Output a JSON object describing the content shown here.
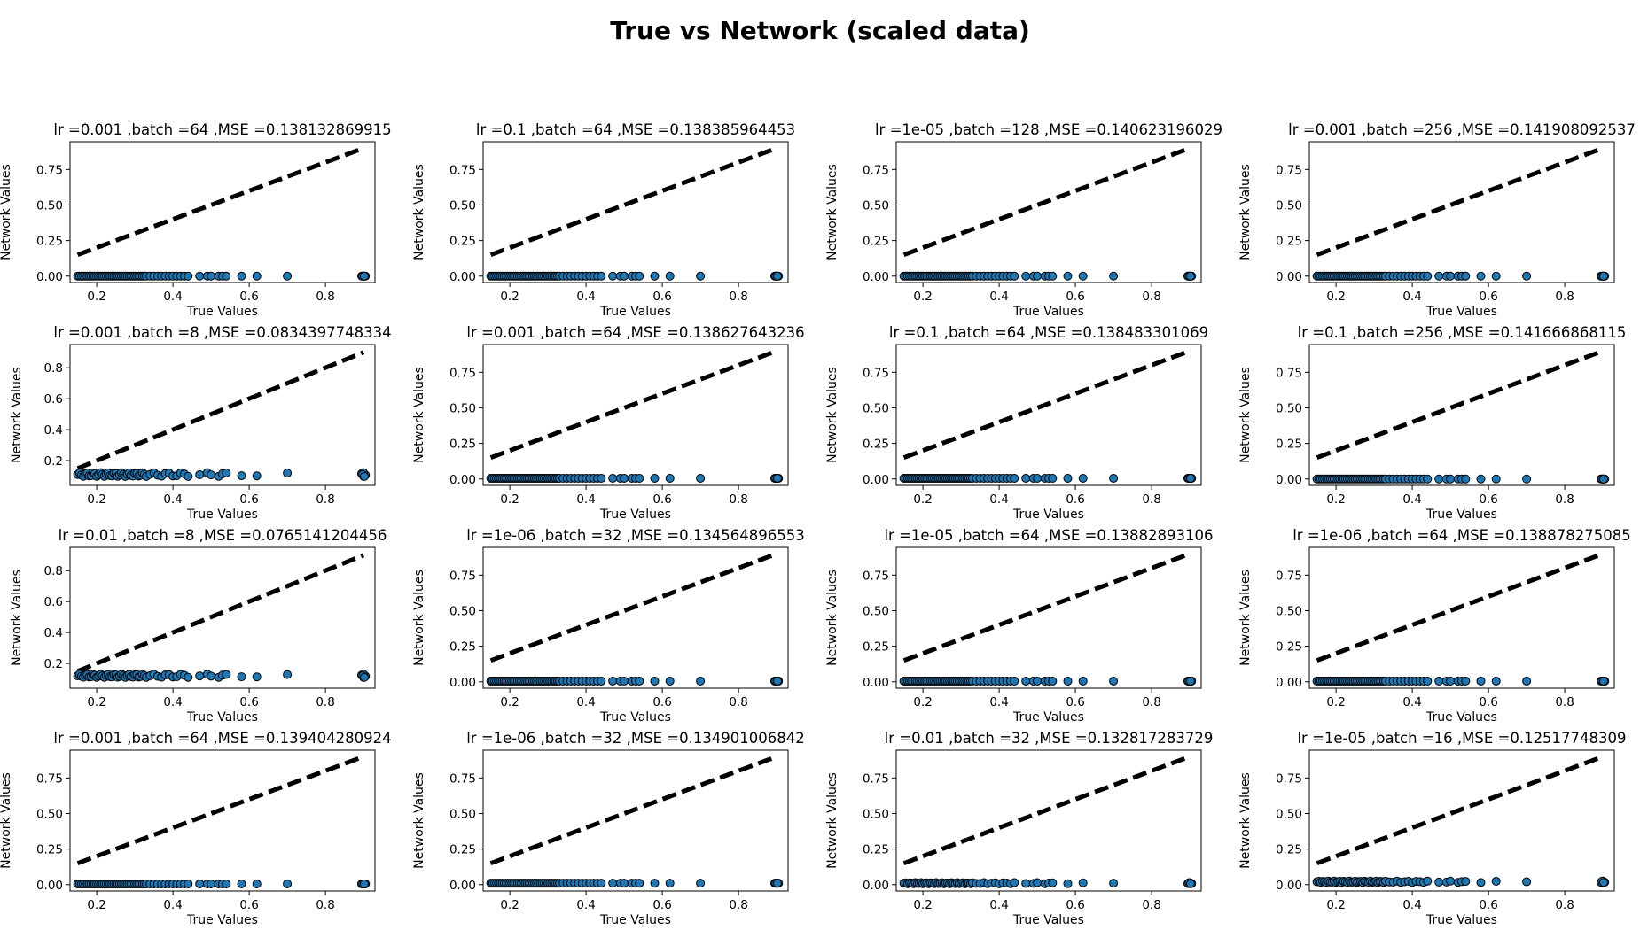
{
  "figure": {
    "suptitle": "True vs Network (scaled data)"
  },
  "chart_data": [
    {
      "type": "scatter",
      "title": "lr =0.001 ,batch =64 ,MSE =0.138132869915",
      "xlabel": "True Values",
      "ylabel": "Network Values",
      "xlim": [
        0.13,
        0.93
      ],
      "ylim": [
        -0.045,
        0.945
      ],
      "xticks": [
        0.2,
        0.4,
        0.6,
        0.8
      ],
      "xtick_labels": [
        "0.2",
        "0.4",
        "0.6",
        "0.8"
      ],
      "yticks": [
        0,
        0.25,
        0.5,
        0.75
      ],
      "ytick_labels": [
        "0.00",
        "0.25",
        "0.50",
        "0.75"
      ],
      "reference_line": {
        "x": [
          0.15,
          0.9
        ],
        "y": [
          0.15,
          0.9
        ]
      },
      "points": {
        "mode": "flat",
        "level": 0.0,
        "spread": 0.0
      }
    },
    {
      "type": "scatter",
      "title": "lr =0.1 ,batch =64 ,MSE =0.138385964453",
      "xlabel": "True Values",
      "ylabel": "Network Values",
      "xlim": [
        0.13,
        0.93
      ],
      "ylim": [
        -0.045,
        0.945
      ],
      "xticks": [
        0.2,
        0.4,
        0.6,
        0.8
      ],
      "xtick_labels": [
        "0.2",
        "0.4",
        "0.6",
        "0.8"
      ],
      "yticks": [
        0,
        0.25,
        0.5,
        0.75
      ],
      "ytick_labels": [
        "0.00",
        "0.25",
        "0.50",
        "0.75"
      ],
      "reference_line": {
        "x": [
          0.15,
          0.9
        ],
        "y": [
          0.15,
          0.9
        ]
      },
      "points": {
        "mode": "flat",
        "level": 0.0,
        "spread": 0.0
      }
    },
    {
      "type": "scatter",
      "title": "lr =1e-05 ,batch =128 ,MSE =0.140623196029",
      "xlabel": "True Values",
      "ylabel": "Network Values",
      "xlim": [
        0.13,
        0.93
      ],
      "ylim": [
        -0.045,
        0.945
      ],
      "xticks": [
        0.2,
        0.4,
        0.6,
        0.8
      ],
      "xtick_labels": [
        "0.2",
        "0.4",
        "0.6",
        "0.8"
      ],
      "yticks": [
        0,
        0.25,
        0.5,
        0.75
      ],
      "ytick_labels": [
        "0.00",
        "0.25",
        "0.50",
        "0.75"
      ],
      "reference_line": {
        "x": [
          0.15,
          0.9
        ],
        "y": [
          0.15,
          0.9
        ]
      },
      "points": {
        "mode": "flat",
        "level": 0.0,
        "spread": 0.0
      }
    },
    {
      "type": "scatter",
      "title": "lr =0.001 ,batch =256 ,MSE =0.141908092537",
      "xlabel": "True Values",
      "ylabel": "Network Values",
      "xlim": [
        0.13,
        0.93
      ],
      "ylim": [
        -0.045,
        0.945
      ],
      "xticks": [
        0.2,
        0.4,
        0.6,
        0.8
      ],
      "xtick_labels": [
        "0.2",
        "0.4",
        "0.6",
        "0.8"
      ],
      "yticks": [
        0,
        0.25,
        0.5,
        0.75
      ],
      "ytick_labels": [
        "0.00",
        "0.25",
        "0.50",
        "0.75"
      ],
      "reference_line": {
        "x": [
          0.15,
          0.9
        ],
        "y": [
          0.15,
          0.9
        ]
      },
      "points": {
        "mode": "flat",
        "level": 0.0,
        "spread": 0.0
      }
    },
    {
      "type": "scatter",
      "title": "lr =0.001 ,batch =8 ,MSE =0.0834397748334",
      "xlabel": "True Values",
      "ylabel": "Network Values",
      "xlim": [
        0.13,
        0.93
      ],
      "ylim": [
        0.04,
        0.95
      ],
      "xticks": [
        0.2,
        0.4,
        0.6,
        0.8
      ],
      "xtick_labels": [
        "0.2",
        "0.4",
        "0.6",
        "0.8"
      ],
      "yticks": [
        0.2,
        0.4,
        0.6,
        0.8
      ],
      "ytick_labels": [
        "0.2",
        "0.4",
        "0.6",
        "0.8"
      ],
      "reference_line": {
        "x": [
          0.15,
          0.9
        ],
        "y": [
          0.15,
          0.9
        ]
      },
      "points": {
        "mode": "wave",
        "level": 0.11,
        "spread": 0.012
      }
    },
    {
      "type": "scatter",
      "title": "lr =0.001 ,batch =64 ,MSE =0.138627643236",
      "xlabel": "True Values",
      "ylabel": "Network Values",
      "xlim": [
        0.13,
        0.93
      ],
      "ylim": [
        -0.045,
        0.945
      ],
      "xticks": [
        0.2,
        0.4,
        0.6,
        0.8
      ],
      "xtick_labels": [
        "0.2",
        "0.4",
        "0.6",
        "0.8"
      ],
      "yticks": [
        0,
        0.25,
        0.5,
        0.75
      ],
      "ytick_labels": [
        "0.00",
        "0.25",
        "0.50",
        "0.75"
      ],
      "reference_line": {
        "x": [
          0.15,
          0.9
        ],
        "y": [
          0.15,
          0.9
        ]
      },
      "points": {
        "mode": "flat",
        "level": 0.005,
        "spread": 0.0
      }
    },
    {
      "type": "scatter",
      "title": "lr =0.1 ,batch =64 ,MSE =0.138483301069",
      "xlabel": "True Values",
      "ylabel": "Network Values",
      "xlim": [
        0.13,
        0.93
      ],
      "ylim": [
        -0.045,
        0.945
      ],
      "xticks": [
        0.2,
        0.4,
        0.6,
        0.8
      ],
      "xtick_labels": [
        "0.2",
        "0.4",
        "0.6",
        "0.8"
      ],
      "yticks": [
        0,
        0.25,
        0.5,
        0.75
      ],
      "ytick_labels": [
        "0.00",
        "0.25",
        "0.50",
        "0.75"
      ],
      "reference_line": {
        "x": [
          0.15,
          0.9
        ],
        "y": [
          0.15,
          0.9
        ]
      },
      "points": {
        "mode": "flat",
        "level": 0.005,
        "spread": 0.0
      }
    },
    {
      "type": "scatter",
      "title": "lr =0.1 ,batch =256 ,MSE =0.141666868115",
      "xlabel": "True Values",
      "ylabel": "Network Values",
      "xlim": [
        0.13,
        0.93
      ],
      "ylim": [
        -0.045,
        0.945
      ],
      "xticks": [
        0.2,
        0.4,
        0.6,
        0.8
      ],
      "xtick_labels": [
        "0.2",
        "0.4",
        "0.6",
        "0.8"
      ],
      "yticks": [
        0,
        0.25,
        0.5,
        0.75
      ],
      "ytick_labels": [
        "0.00",
        "0.25",
        "0.50",
        "0.75"
      ],
      "reference_line": {
        "x": [
          0.15,
          0.9
        ],
        "y": [
          0.15,
          0.9
        ]
      },
      "points": {
        "mode": "flat",
        "level": 0.0,
        "spread": 0.0
      }
    },
    {
      "type": "scatter",
      "title": "lr =0.01 ,batch =8 ,MSE =0.0765141204456",
      "xlabel": "True Values",
      "ylabel": "Network Values",
      "xlim": [
        0.13,
        0.93
      ],
      "ylim": [
        0.04,
        0.95
      ],
      "xticks": [
        0.2,
        0.4,
        0.6,
        0.8
      ],
      "xtick_labels": [
        "0.2",
        "0.4",
        "0.6",
        "0.8"
      ],
      "yticks": [
        0.2,
        0.4,
        0.6,
        0.8
      ],
      "ytick_labels": [
        "0.2",
        "0.4",
        "0.6",
        "0.8"
      ],
      "reference_line": {
        "x": [
          0.15,
          0.9
        ],
        "y": [
          0.15,
          0.9
        ]
      },
      "points": {
        "mode": "wave",
        "level": 0.12,
        "spread": 0.01
      }
    },
    {
      "type": "scatter",
      "title": "lr =1e-06 ,batch =32 ,MSE =0.134564896553",
      "xlabel": "True Values",
      "ylabel": "Network Values",
      "xlim": [
        0.13,
        0.93
      ],
      "ylim": [
        -0.045,
        0.945
      ],
      "xticks": [
        0.2,
        0.4,
        0.6,
        0.8
      ],
      "xtick_labels": [
        "0.2",
        "0.4",
        "0.6",
        "0.8"
      ],
      "yticks": [
        0,
        0.25,
        0.5,
        0.75
      ],
      "ytick_labels": [
        "0.00",
        "0.25",
        "0.50",
        "0.75"
      ],
      "reference_line": {
        "x": [
          0.15,
          0.9
        ],
        "y": [
          0.15,
          0.9
        ]
      },
      "points": {
        "mode": "flat",
        "level": 0.005,
        "spread": 0.0
      }
    },
    {
      "type": "scatter",
      "title": "lr =1e-05 ,batch =64 ,MSE =0.13882893106",
      "xlabel": "True Values",
      "ylabel": "Network Values",
      "xlim": [
        0.13,
        0.93
      ],
      "ylim": [
        -0.045,
        0.945
      ],
      "xticks": [
        0.2,
        0.4,
        0.6,
        0.8
      ],
      "xtick_labels": [
        "0.2",
        "0.4",
        "0.6",
        "0.8"
      ],
      "yticks": [
        0,
        0.25,
        0.5,
        0.75
      ],
      "ytick_labels": [
        "0.00",
        "0.25",
        "0.50",
        "0.75"
      ],
      "reference_line": {
        "x": [
          0.15,
          0.9
        ],
        "y": [
          0.15,
          0.9
        ]
      },
      "points": {
        "mode": "flat",
        "level": 0.005,
        "spread": 0.0
      }
    },
    {
      "type": "scatter",
      "title": "lr =1e-06 ,batch =64 ,MSE =0.138878275085",
      "xlabel": "True Values",
      "ylabel": "Network Values",
      "xlim": [
        0.13,
        0.93
      ],
      "ylim": [
        -0.045,
        0.945
      ],
      "xticks": [
        0.2,
        0.4,
        0.6,
        0.8
      ],
      "xtick_labels": [
        "0.2",
        "0.4",
        "0.6",
        "0.8"
      ],
      "yticks": [
        0,
        0.25,
        0.5,
        0.75
      ],
      "ytick_labels": [
        "0.00",
        "0.25",
        "0.50",
        "0.75"
      ],
      "reference_line": {
        "x": [
          0.15,
          0.9
        ],
        "y": [
          0.15,
          0.9
        ]
      },
      "points": {
        "mode": "flat",
        "level": 0.005,
        "spread": 0.0
      }
    },
    {
      "type": "scatter",
      "title": "lr =0.001 ,batch =64 ,MSE =0.139404280924",
      "xlabel": "True Values",
      "ylabel": "Network Values",
      "xlim": [
        0.13,
        0.93
      ],
      "ylim": [
        -0.045,
        0.945
      ],
      "xticks": [
        0.2,
        0.4,
        0.6,
        0.8
      ],
      "xtick_labels": [
        "0.2",
        "0.4",
        "0.6",
        "0.8"
      ],
      "yticks": [
        0,
        0.25,
        0.5,
        0.75
      ],
      "ytick_labels": [
        "0.00",
        "0.25",
        "0.50",
        "0.75"
      ],
      "reference_line": {
        "x": [
          0.15,
          0.9
        ],
        "y": [
          0.15,
          0.9
        ]
      },
      "points": {
        "mode": "flat",
        "level": 0.005,
        "spread": 0.0
      }
    },
    {
      "type": "scatter",
      "title": "lr =1e-06 ,batch =32 ,MSE =0.134901006842",
      "xlabel": "True Values",
      "ylabel": "Network Values",
      "xlim": [
        0.13,
        0.93
      ],
      "ylim": [
        -0.045,
        0.945
      ],
      "xticks": [
        0.2,
        0.4,
        0.6,
        0.8
      ],
      "xtick_labels": [
        "0.2",
        "0.4",
        "0.6",
        "0.8"
      ],
      "yticks": [
        0,
        0.25,
        0.5,
        0.75
      ],
      "ytick_labels": [
        "0.00",
        "0.25",
        "0.50",
        "0.75"
      ],
      "reference_line": {
        "x": [
          0.15,
          0.9
        ],
        "y": [
          0.15,
          0.9
        ]
      },
      "points": {
        "mode": "flat",
        "level": 0.01,
        "spread": 0.0
      }
    },
    {
      "type": "scatter",
      "title": "lr =0.01 ,batch =32 ,MSE =0.132817283729",
      "xlabel": "True Values",
      "ylabel": "Network Values",
      "xlim": [
        0.13,
        0.93
      ],
      "ylim": [
        -0.045,
        0.945
      ],
      "xticks": [
        0.2,
        0.4,
        0.6,
        0.8
      ],
      "xtick_labels": [
        "0.2",
        "0.4",
        "0.6",
        "0.8"
      ],
      "yticks": [
        0,
        0.25,
        0.5,
        0.75
      ],
      "ytick_labels": [
        "0.00",
        "0.25",
        "0.50",
        "0.75"
      ],
      "reference_line": {
        "x": [
          0.15,
          0.9
        ],
        "y": [
          0.15,
          0.9
        ]
      },
      "points": {
        "mode": "flat",
        "level": 0.01,
        "spread": 0.004
      }
    },
    {
      "type": "scatter",
      "title": "lr =1e-05 ,batch =16 ,MSE =0.12517748309",
      "xlabel": "True Values",
      "ylabel": "Network Values",
      "xlim": [
        0.13,
        0.93
      ],
      "ylim": [
        -0.045,
        0.945
      ],
      "xticks": [
        0.2,
        0.4,
        0.6,
        0.8
      ],
      "xtick_labels": [
        "0.2",
        "0.4",
        "0.6",
        "0.8"
      ],
      "yticks": [
        0,
        0.25,
        0.5,
        0.75
      ],
      "ytick_labels": [
        "0.00",
        "0.25",
        "0.50",
        "0.75"
      ],
      "reference_line": {
        "x": [
          0.15,
          0.9
        ],
        "y": [
          0.15,
          0.9
        ]
      },
      "points": {
        "mode": "flat",
        "level": 0.02,
        "spread": 0.005
      }
    }
  ],
  "true_values": [
    0.15,
    0.155,
    0.16,
    0.165,
    0.17,
    0.175,
    0.18,
    0.185,
    0.19,
    0.195,
    0.2,
    0.205,
    0.21,
    0.215,
    0.22,
    0.225,
    0.23,
    0.235,
    0.24,
    0.245,
    0.25,
    0.255,
    0.26,
    0.265,
    0.27,
    0.275,
    0.28,
    0.285,
    0.29,
    0.295,
    0.3,
    0.305,
    0.31,
    0.315,
    0.32,
    0.325,
    0.33,
    0.34,
    0.35,
    0.36,
    0.37,
    0.38,
    0.39,
    0.4,
    0.41,
    0.42,
    0.43,
    0.44,
    0.47,
    0.49,
    0.5,
    0.52,
    0.53,
    0.54,
    0.58,
    0.62,
    0.7,
    0.895,
    0.9,
    0.905,
    0.9,
    0.898,
    0.902
  ],
  "style": {
    "marker_fill": "#1f77b4",
    "marker_edge": "#000000",
    "line_color": "#000000",
    "axes_color": "#000000"
  }
}
